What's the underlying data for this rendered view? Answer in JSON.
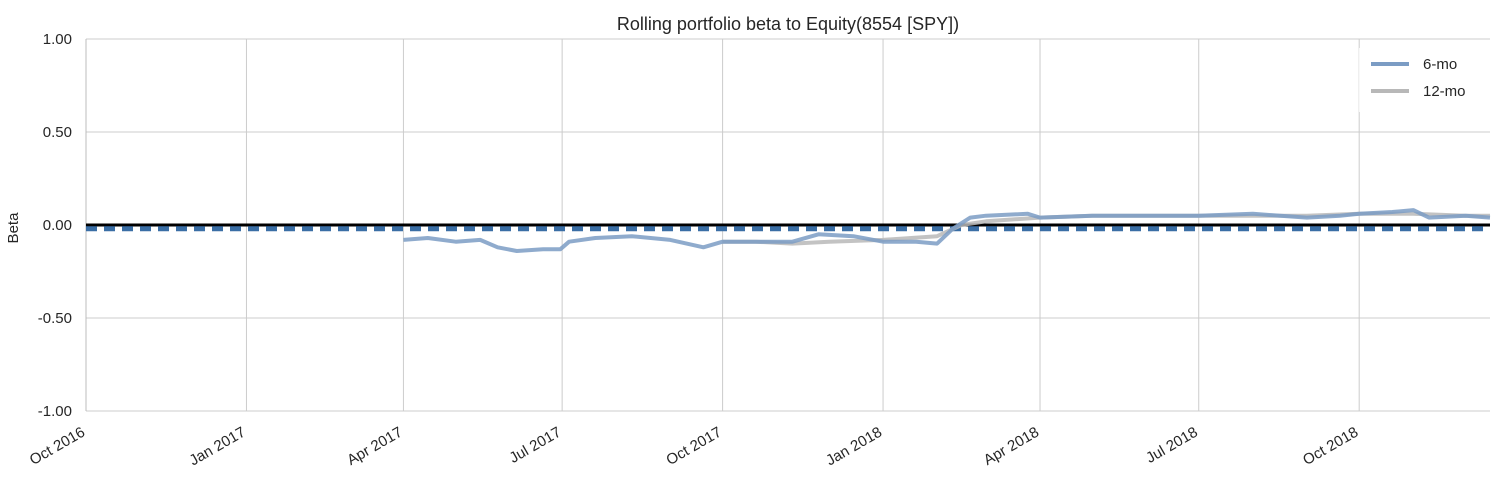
{
  "chart_data": {
    "type": "line",
    "title": "Rolling portfolio beta to Equity(8554 [SPY])",
    "xlabel": "",
    "ylabel": "Beta",
    "x_range": [
      "2016-10-01",
      "2018-12-15"
    ],
    "ylim": [
      -1.0,
      1.0
    ],
    "y_ticks": [
      1.0,
      0.5,
      0.0,
      -0.5,
      -1.0
    ],
    "y_tick_labels": [
      "1.00",
      "0.50",
      "0.00",
      "-0.50",
      "-1.00"
    ],
    "x_ticks": [
      "2016-10-01",
      "2017-01-01",
      "2017-04-01",
      "2017-07-01",
      "2017-10-01",
      "2018-01-01",
      "2018-04-01",
      "2018-07-01",
      "2018-10-01"
    ],
    "x_tick_labels": [
      "Oct 2016",
      "Jan 2017",
      "Apr 2017",
      "Jul 2017",
      "Oct 2017",
      "Jan 2018",
      "Apr 2018",
      "Jul 2018",
      "Oct 2018"
    ],
    "grid": true,
    "legend_position": "top-right",
    "zero_line": 0.0,
    "mean_line": -0.02,
    "colors": {
      "six_mo": "#7b9cc4",
      "twelve_mo": "#b8b8b8",
      "mean": "#3a6ea5",
      "zero": "#000000",
      "grid": "#cccccc"
    },
    "series": [
      {
        "name": "6-mo",
        "points": [
          [
            "2017-04-01",
            -0.08
          ],
          [
            "2017-04-15",
            -0.07
          ],
          [
            "2017-05-01",
            -0.09
          ],
          [
            "2017-05-15",
            -0.08
          ],
          [
            "2017-05-25",
            -0.12
          ],
          [
            "2017-06-05",
            -0.14
          ],
          [
            "2017-06-20",
            -0.13
          ],
          [
            "2017-06-30",
            -0.13
          ],
          [
            "2017-07-05",
            -0.09
          ],
          [
            "2017-07-20",
            -0.07
          ],
          [
            "2017-08-10",
            -0.06
          ],
          [
            "2017-09-01",
            -0.08
          ],
          [
            "2017-09-20",
            -0.12
          ],
          [
            "2017-10-01",
            -0.09
          ],
          [
            "2017-10-20",
            -0.09
          ],
          [
            "2017-11-10",
            -0.09
          ],
          [
            "2017-11-25",
            -0.05
          ],
          [
            "2017-12-15",
            -0.06
          ],
          [
            "2018-01-01",
            -0.09
          ],
          [
            "2018-01-20",
            -0.09
          ],
          [
            "2018-02-01",
            -0.1
          ],
          [
            "2018-02-10",
            -0.02
          ],
          [
            "2018-02-20",
            0.04
          ],
          [
            "2018-03-01",
            0.05
          ],
          [
            "2018-03-25",
            0.06
          ],
          [
            "2018-04-01",
            0.04
          ],
          [
            "2018-05-01",
            0.05
          ],
          [
            "2018-06-01",
            0.05
          ],
          [
            "2018-07-01",
            0.05
          ],
          [
            "2018-08-01",
            0.06
          ],
          [
            "2018-09-01",
            0.04
          ],
          [
            "2018-09-20",
            0.05
          ],
          [
            "2018-10-01",
            0.06
          ],
          [
            "2018-10-20",
            0.07
          ],
          [
            "2018-11-01",
            0.08
          ],
          [
            "2018-11-10",
            0.04
          ],
          [
            "2018-12-01",
            0.05
          ],
          [
            "2018-12-15",
            0.04
          ]
        ]
      },
      {
        "name": "12-mo",
        "points": [
          [
            "2017-10-01",
            -0.09
          ],
          [
            "2017-10-20",
            -0.09
          ],
          [
            "2017-11-10",
            -0.1
          ],
          [
            "2017-12-01",
            -0.09
          ],
          [
            "2018-01-01",
            -0.08
          ],
          [
            "2018-02-01",
            -0.06
          ],
          [
            "2018-02-15",
            0.0
          ],
          [
            "2018-03-01",
            0.02
          ],
          [
            "2018-04-01",
            0.04
          ],
          [
            "2018-05-01",
            0.05
          ],
          [
            "2018-06-01",
            0.05
          ],
          [
            "2018-07-01",
            0.05
          ],
          [
            "2018-08-01",
            0.05
          ],
          [
            "2018-09-01",
            0.05
          ],
          [
            "2018-10-01",
            0.06
          ],
          [
            "2018-11-01",
            0.06
          ],
          [
            "2018-12-01",
            0.05
          ],
          [
            "2018-12-15",
            0.05
          ]
        ]
      }
    ]
  }
}
